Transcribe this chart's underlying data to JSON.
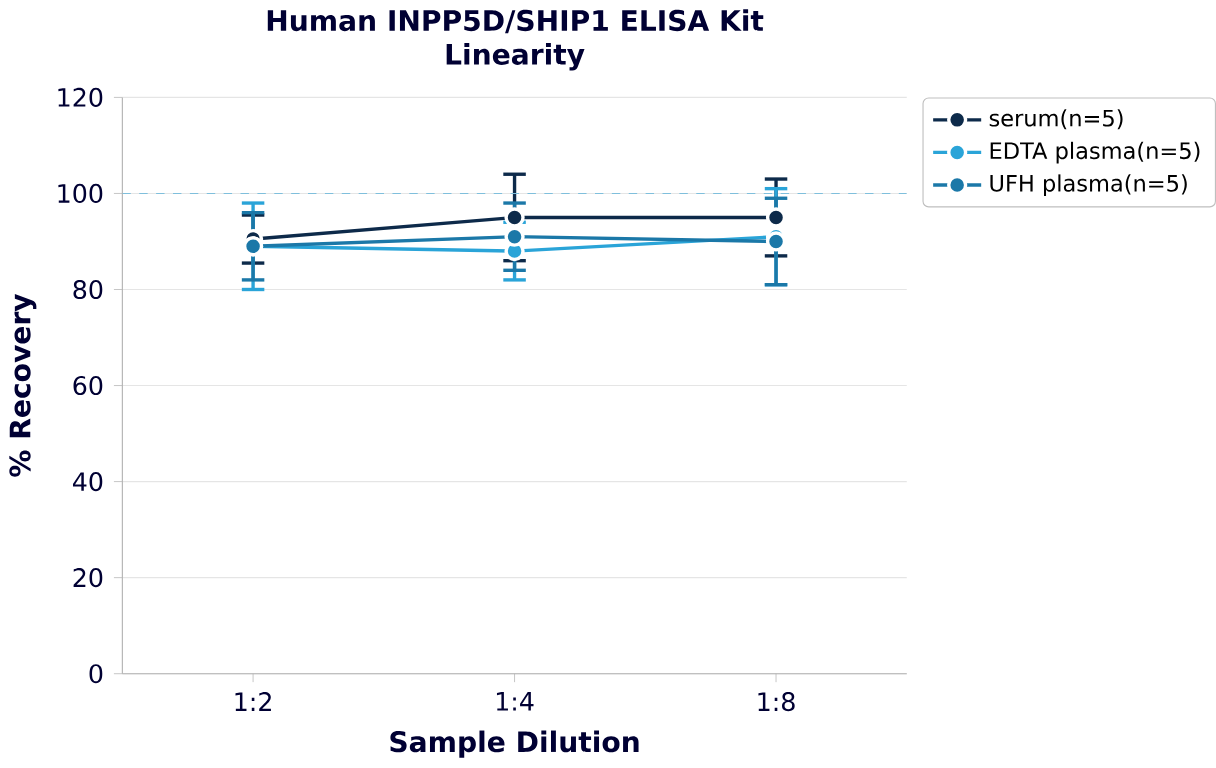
{
  "chart_data": {
    "type": "line",
    "title": "Human INPP5D/SHIP1  ELISA Kit",
    "subtitle": "Linearity",
    "xlabel": "Sample Dilution",
    "ylabel": "% Recovery",
    "categories": [
      "1:2",
      "1:4",
      "1:8"
    ],
    "series": [
      {
        "name": "serum(n=5)",
        "color": "#0d2a4a",
        "values": [
          90.5,
          95,
          95
        ],
        "errors": [
          5,
          9,
          8
        ]
      },
      {
        "name": "EDTA plasma(n=5)",
        "color": "#2aa4d8",
        "values": [
          89,
          88,
          91
        ],
        "errors": [
          9,
          6,
          10
        ]
      },
      {
        "name": "UFH plasma(n=5)",
        "color": "#1b78a8",
        "values": [
          89,
          91,
          90
        ],
        "errors": [
          7,
          7,
          9
        ]
      }
    ],
    "ylim": [
      0,
      120
    ],
    "yticks": [
      0,
      20,
      40,
      60,
      80,
      100,
      120
    ],
    "ref_lines": [
      {
        "axis": "y",
        "value": 100,
        "color": "#7fbfdc",
        "line_style": "dashed"
      }
    ],
    "grid": "y",
    "legend": "top right",
    "marker": "circle",
    "line_style": "solid"
  }
}
